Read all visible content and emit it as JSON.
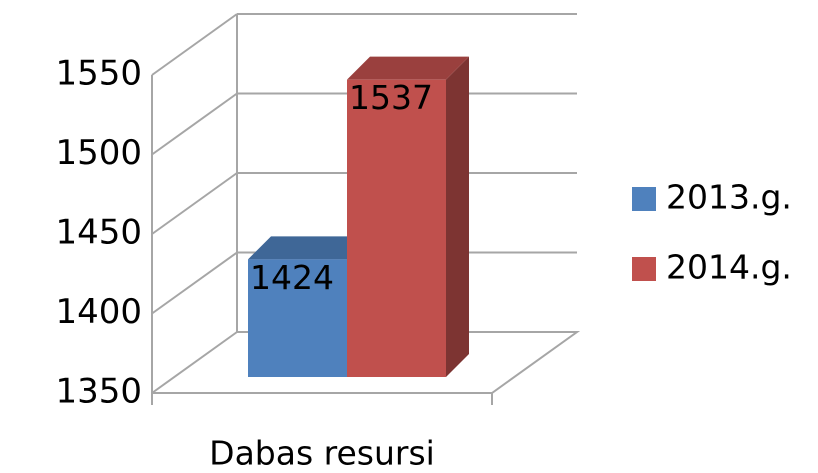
{
  "chart_data": {
    "type": "bar3d",
    "categories": [
      "Dabas resursi"
    ],
    "series": [
      {
        "name": "2013.g.",
        "color": "#4f81bd",
        "values": [
          1424
        ]
      },
      {
        "name": "2014.g.",
        "color": "#c0504d",
        "values": [
          1537
        ]
      }
    ],
    "ylim": [
      1350,
      1550
    ],
    "yticks": [
      1350,
      1400,
      1450,
      1500,
      1550
    ],
    "grid": true,
    "legend": "right"
  }
}
